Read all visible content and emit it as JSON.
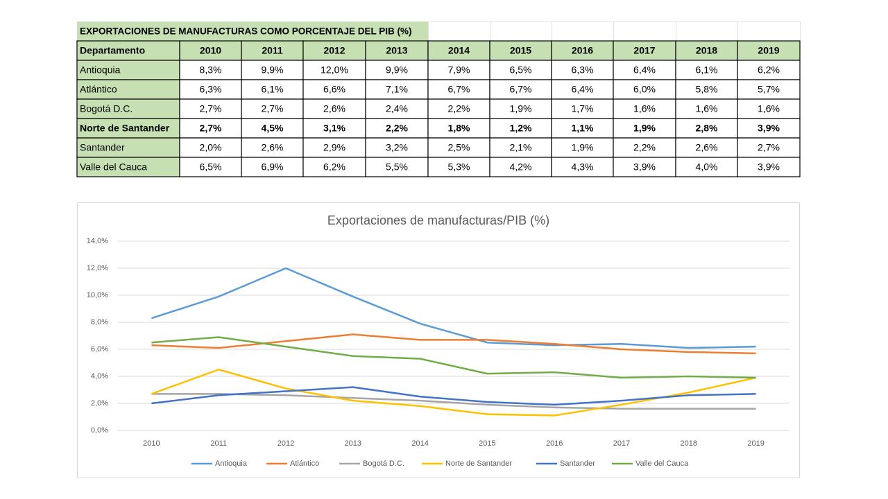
{
  "table": {
    "title": "EXPORTACIONES DE MANUFACTURAS COMO PORCENTAJE DEL PIB (%)",
    "header": [
      "Departamento",
      "2010",
      "2011",
      "2012",
      "2013",
      "2014",
      "2015",
      "2016",
      "2017",
      "2018",
      "2019"
    ],
    "rows": [
      [
        "Antioquia",
        "8,3%",
        "9,9%",
        "12,0%",
        "9,9%",
        "7,9%",
        "6,5%",
        "6,3%",
        "6,4%",
        "6,1%",
        "6,2%"
      ],
      [
        "Atlántico",
        "6,3%",
        "6,1%",
        "6,6%",
        "7,1%",
        "6,7%",
        "6,7%",
        "6,4%",
        "6,0%",
        "5,8%",
        "5,7%"
      ],
      [
        "Bogotá D.C.",
        "2,7%",
        "2,7%",
        "2,6%",
        "2,4%",
        "2,2%",
        "1,9%",
        "1,7%",
        "1,6%",
        "1,6%",
        "1,6%"
      ],
      [
        "Norte de Santander",
        "2,7%",
        "4,5%",
        "3,1%",
        "2,2%",
        "1,8%",
        "1,2%",
        "1,1%",
        "1,9%",
        "2,8%",
        "3,9%"
      ],
      [
        "Santander",
        "2,0%",
        "2,6%",
        "2,9%",
        "3,2%",
        "2,5%",
        "2,1%",
        "1,9%",
        "2,2%",
        "2,6%",
        "2,7%"
      ],
      [
        "Valle del Cauca",
        "6,5%",
        "6,9%",
        "6,2%",
        "5,5%",
        "5,3%",
        "4,2%",
        "4,3%",
        "3,9%",
        "4,0%",
        "3,9%"
      ]
    ],
    "bold_row": 3,
    "header_color": "#c6e0b4"
  },
  "chart_data": {
    "type": "line",
    "title": "Exportaciones de manufacturas/PIB (%)",
    "categories": [
      "2010",
      "2011",
      "2012",
      "2013",
      "2014",
      "2015",
      "2016",
      "2017",
      "2018",
      "2019"
    ],
    "series": [
      {
        "name": "Antioquia",
        "color": "#5b9bd5",
        "values": [
          8.3,
          9.9,
          12.0,
          9.9,
          7.9,
          6.5,
          6.3,
          6.4,
          6.1,
          6.2
        ]
      },
      {
        "name": "Atlántico",
        "color": "#ed7d31",
        "values": [
          6.3,
          6.1,
          6.6,
          7.1,
          6.7,
          6.7,
          6.4,
          6.0,
          5.8,
          5.7
        ]
      },
      {
        "name": "Bogotá D.C.",
        "color": "#a5a5a5",
        "values": [
          2.7,
          2.7,
          2.6,
          2.4,
          2.2,
          1.9,
          1.7,
          1.6,
          1.6,
          1.6
        ]
      },
      {
        "name": "Norte de Santander",
        "color": "#ffc000",
        "values": [
          2.7,
          4.5,
          3.1,
          2.2,
          1.8,
          1.2,
          1.1,
          1.9,
          2.8,
          3.9
        ]
      },
      {
        "name": "Santander",
        "color": "#4472c4",
        "values": [
          2.0,
          2.6,
          2.9,
          3.2,
          2.5,
          2.1,
          1.9,
          2.2,
          2.6,
          2.7
        ]
      },
      {
        "name": "Valle del Cauca",
        "color": "#70ad47",
        "values": [
          6.5,
          6.9,
          6.2,
          5.5,
          5.3,
          4.2,
          4.3,
          3.9,
          4.0,
          3.9
        ]
      }
    ],
    "ylim": [
      0,
      14
    ],
    "yticks": [
      {
        "value": 0,
        "label": "0,0%"
      },
      {
        "value": 2,
        "label": "2,0%"
      },
      {
        "value": 4,
        "label": "4,0%"
      },
      {
        "value": 6,
        "label": "6,0%"
      },
      {
        "value": 8,
        "label": "8,0%"
      },
      {
        "value": 10,
        "label": "10,0%"
      },
      {
        "value": 12,
        "label": "12,0%"
      },
      {
        "value": 14,
        "label": "14,0%"
      }
    ],
    "grid": true,
    "legend": "bottom"
  }
}
